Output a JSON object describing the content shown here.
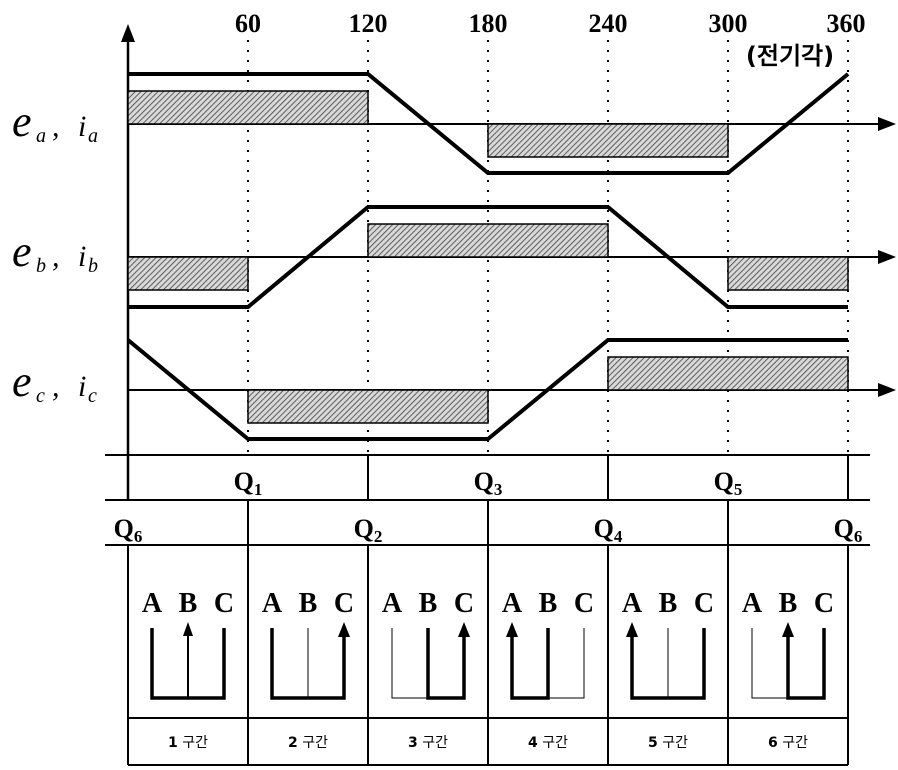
{
  "axis_ticks": [
    "60",
    "120",
    "180",
    "240",
    "300",
    "360"
  ],
  "axis_unit": "(전기각)",
  "signals": [
    {
      "e": "e",
      "i": "i",
      "sub": "a",
      "sep": ","
    },
    {
      "e": "e",
      "i": "i",
      "sub": "b",
      "sep": ","
    },
    {
      "e": "e",
      "i": "i",
      "sub": "c",
      "sep": ","
    }
  ],
  "upper_switches": [
    {
      "q": "Q",
      "sub": "1"
    },
    {
      "q": "Q",
      "sub": "3"
    },
    {
      "q": "Q",
      "sub": "5"
    }
  ],
  "lower_switches": [
    {
      "q": "Q",
      "sub": "6"
    },
    {
      "q": "Q",
      "sub": "2"
    },
    {
      "q": "Q",
      "sub": "4"
    },
    {
      "q": "Q",
      "sub": "6"
    }
  ],
  "phase_letters": [
    "A",
    "B",
    "C"
  ],
  "sections": [
    {
      "num": "1",
      "text": "구간"
    },
    {
      "num": "2",
      "text": "구간"
    },
    {
      "num": "3",
      "text": "구간"
    },
    {
      "num": "4",
      "text": "구간"
    },
    {
      "num": "5",
      "text": "구간"
    },
    {
      "num": "6",
      "text": "구간"
    }
  ]
}
